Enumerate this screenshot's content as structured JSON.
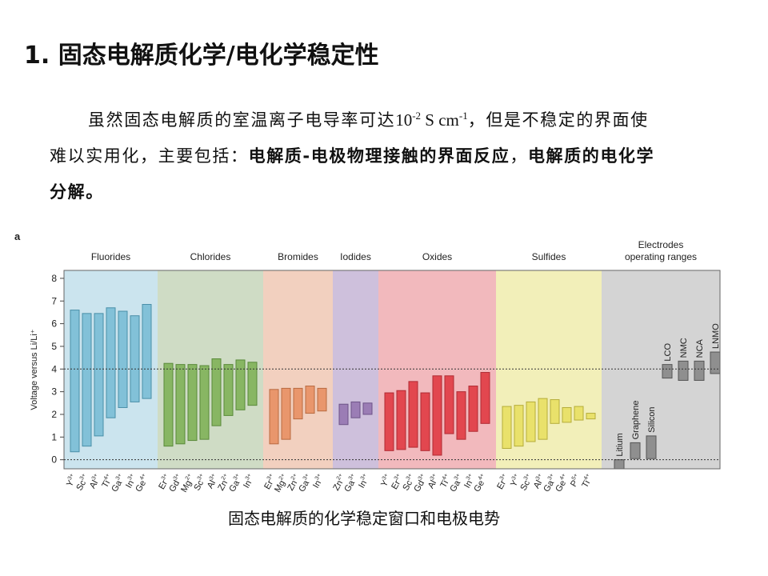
{
  "header": {
    "title": "1. 固态电解质化学/电化学稳定性"
  },
  "paragraph": {
    "segments": [
      {
        "text": "虽然固态电解质的室温离子电导率可达",
        "style": "normal"
      },
      {
        "text": "10",
        "style": "serif"
      },
      {
        "text": "-2",
        "style": "sup"
      },
      {
        "text": " S cm",
        "style": "serif"
      },
      {
        "text": "-1",
        "style": "sup"
      },
      {
        "text": "，但是不稳定的界面使难以实用化，主要包括：",
        "style": "normal"
      },
      {
        "text": "电解质-电极物理接触的界面反应",
        "style": "bold"
      },
      {
        "text": "，",
        "style": "normal"
      },
      {
        "text": "电解质的电化学分解。",
        "style": "bold"
      }
    ]
  },
  "chart_data": {
    "type": "floating_bar",
    "panel_label": "a",
    "y_label": "Voltage versus Li/Li⁺",
    "ylim": [
      -0.4,
      8.35
    ],
    "yticks": [
      0,
      1,
      2,
      3,
      4,
      5,
      6,
      7,
      8
    ],
    "reference_lines": [
      0,
      4
    ],
    "groups": [
      {
        "name": [
          "Fluorides"
        ],
        "background": "#cbe4ee",
        "color": "#82c1d8",
        "stroke": "#4a8fa8",
        "bars": [
          {
            "label": "Y",
            "charge": "3+",
            "range": [
              0.35,
              6.6
            ]
          },
          {
            "label": "Sc",
            "charge": "3+",
            "range": [
              0.6,
              6.45
            ]
          },
          {
            "label": "Al",
            "charge": "3+",
            "range": [
              1.05,
              6.45
            ]
          },
          {
            "label": "Ti",
            "charge": "4+",
            "range": [
              1.85,
              6.7
            ]
          },
          {
            "label": "Ga",
            "charge": "3+",
            "range": [
              2.3,
              6.55
            ]
          },
          {
            "label": "In",
            "charge": "3+",
            "range": [
              2.55,
              6.35
            ]
          },
          {
            "label": "Ge",
            "charge": "4+",
            "range": [
              2.7,
              6.85
            ]
          }
        ]
      },
      {
        "name": [
          "Chlorides"
        ],
        "background": "#cfdcc5",
        "color": "#88b663",
        "stroke": "#5a8a3a",
        "bars": [
          {
            "label": "Er",
            "charge": "3+",
            "range": [
              0.6,
              4.25
            ]
          },
          {
            "label": "Gd",
            "charge": "3+",
            "range": [
              0.7,
              4.2
            ]
          },
          {
            "label": "Mg",
            "charge": "2+",
            "range": [
              0.85,
              4.2
            ]
          },
          {
            "label": "Sc",
            "charge": "3+",
            "range": [
              0.9,
              4.15
            ]
          },
          {
            "label": "Al",
            "charge": "3+",
            "range": [
              1.5,
              4.45
            ]
          },
          {
            "label": "Zn",
            "charge": "2+",
            "range": [
              1.95,
              4.2
            ]
          },
          {
            "label": "Ga",
            "charge": "3+",
            "range": [
              2.2,
              4.4
            ]
          },
          {
            "label": "In",
            "charge": "3+",
            "range": [
              2.4,
              4.3
            ]
          }
        ]
      },
      {
        "name": [
          "Bromides"
        ],
        "background": "#f2d0bf",
        "color": "#e9966c",
        "stroke": "#b86a40",
        "bars": [
          {
            "label": "Er",
            "charge": "3+",
            "range": [
              0.7,
              3.1
            ]
          },
          {
            "label": "Mg",
            "charge": "2+",
            "range": [
              0.9,
              3.15
            ]
          },
          {
            "label": "Zn",
            "charge": "2+",
            "range": [
              1.8,
              3.15
            ]
          },
          {
            "label": "Ga",
            "charge": "3+",
            "range": [
              2.05,
              3.25
            ]
          },
          {
            "label": "In",
            "charge": "3+",
            "range": [
              2.15,
              3.15
            ]
          }
        ]
      },
      {
        "name": [
          "Iodides"
        ],
        "background": "#cec0dc",
        "color": "#9b7db5",
        "stroke": "#6e5488",
        "bars": [
          {
            "label": "Zn",
            "charge": "2+",
            "range": [
              1.55,
              2.45
            ]
          },
          {
            "label": "Ga",
            "charge": "3+",
            "range": [
              1.85,
              2.55
            ]
          },
          {
            "label": "In",
            "charge": "3+",
            "range": [
              2.0,
              2.5
            ]
          }
        ]
      },
      {
        "name": [
          "Oxides"
        ],
        "background": "#f2b9bd",
        "color": "#e2474f",
        "stroke": "#b02a32",
        "bars": [
          {
            "label": "Y",
            "charge": "3+",
            "range": [
              0.4,
              2.95
            ]
          },
          {
            "label": "Er",
            "charge": "3+",
            "range": [
              0.45,
              3.05
            ]
          },
          {
            "label": "Sc",
            "charge": "3+",
            "range": [
              0.55,
              3.45
            ]
          },
          {
            "label": "Gd",
            "charge": "3+",
            "range": [
              0.4,
              2.95
            ]
          },
          {
            "label": "Al",
            "charge": "3+",
            "range": [
              0.2,
              3.7
            ]
          },
          {
            "label": "Ti",
            "charge": "4+",
            "range": [
              1.15,
              3.7
            ]
          },
          {
            "label": "Ga",
            "charge": "3+",
            "range": [
              0.9,
              3.0
            ]
          },
          {
            "label": "In",
            "charge": "3+",
            "range": [
              1.25,
              3.25
            ]
          },
          {
            "label": "Ge",
            "charge": "4+",
            "range": [
              1.6,
              3.85
            ]
          }
        ]
      },
      {
        "name": [
          "Sulfides"
        ],
        "background": "#f2efb9",
        "color": "#e9e16b",
        "stroke": "#b5ad3a",
        "bars": [
          {
            "label": "Er",
            "charge": "3+",
            "range": [
              0.5,
              2.35
            ]
          },
          {
            "label": "Y",
            "charge": "3+",
            "range": [
              0.6,
              2.4
            ]
          },
          {
            "label": "Sc",
            "charge": "3+",
            "range": [
              0.8,
              2.55
            ]
          },
          {
            "label": "Al",
            "charge": "3+",
            "range": [
              0.9,
              2.7
            ]
          },
          {
            "label": "Ga",
            "charge": "3+",
            "range": [
              1.6,
              2.65
            ]
          },
          {
            "label": "Ge",
            "charge": "4+",
            "range": [
              1.65,
              2.3
            ]
          },
          {
            "label": "P",
            "charge": "5+",
            "range": [
              1.75,
              2.35
            ]
          },
          {
            "label": "Ti",
            "charge": "4+",
            "range": [
              1.8,
              2.05
            ]
          }
        ]
      },
      {
        "name": [
          "Electrodes",
          "operating ranges"
        ],
        "background": "#d4d4d4",
        "color": "#8f8f8f",
        "stroke": "#555555",
        "bars": [
          {
            "label": "Litium",
            "range": [
              -0.4,
              0
            ]
          },
          {
            "label": "Graphene",
            "range": [
              0.05,
              0.75
            ]
          },
          {
            "label": "Silicon",
            "range": [
              0.05,
              1.05
            ]
          },
          {
            "label": "LCO",
            "range": [
              3.6,
              4.2
            ]
          },
          {
            "label": "NMC",
            "range": [
              3.5,
              4.35
            ]
          },
          {
            "label": "NCA",
            "range": [
              3.5,
              4.35
            ]
          },
          {
            "label": "LNMO",
            "range": [
              3.8,
              4.75
            ]
          }
        ]
      }
    ]
  },
  "caption": "固态电解质的化学稳定窗口和电极电势"
}
